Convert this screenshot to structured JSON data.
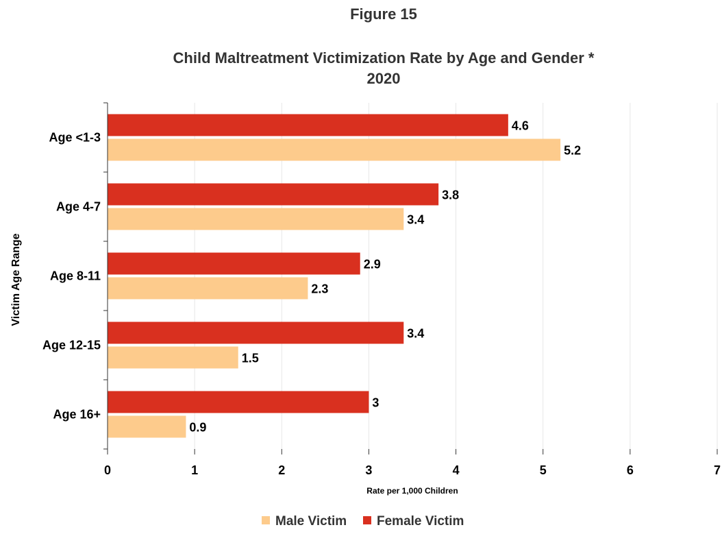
{
  "chart_data": {
    "type": "bar",
    "orientation": "horizontal",
    "figure_label": "Figure 15",
    "title": "Child Maltreatment Victimization Rate by Age and Gender *",
    "subtitle": "2020",
    "xlabel": "Rate per 1,000 Children",
    "ylabel": "Victim Age Range",
    "xlim": [
      0,
      7
    ],
    "x_ticks": [
      "0",
      "1",
      "2",
      "3",
      "4",
      "5",
      "6",
      "7"
    ],
    "grid": true,
    "legend_position": "bottom",
    "categories": [
      "Age <1-3",
      "Age 4-7",
      "Age 8-11",
      "Age 12-15",
      "Age 16+"
    ],
    "series": [
      {
        "name": "Female Victim",
        "color": "#d9301f",
        "values": [
          4.6,
          3.8,
          2.9,
          3.4,
          3
        ],
        "labels": [
          "4.6",
          "3.8",
          "2.9",
          "3.4",
          "3"
        ]
      },
      {
        "name": "Male Victim",
        "color": "#fdcb8c",
        "values": [
          5.2,
          3.4,
          2.3,
          1.5,
          0.9
        ],
        "labels": [
          "5.2",
          "3.4",
          "2.3",
          "1.5",
          "0.9"
        ]
      }
    ],
    "legend_order": [
      "Male Victim",
      "Female Victim"
    ]
  }
}
